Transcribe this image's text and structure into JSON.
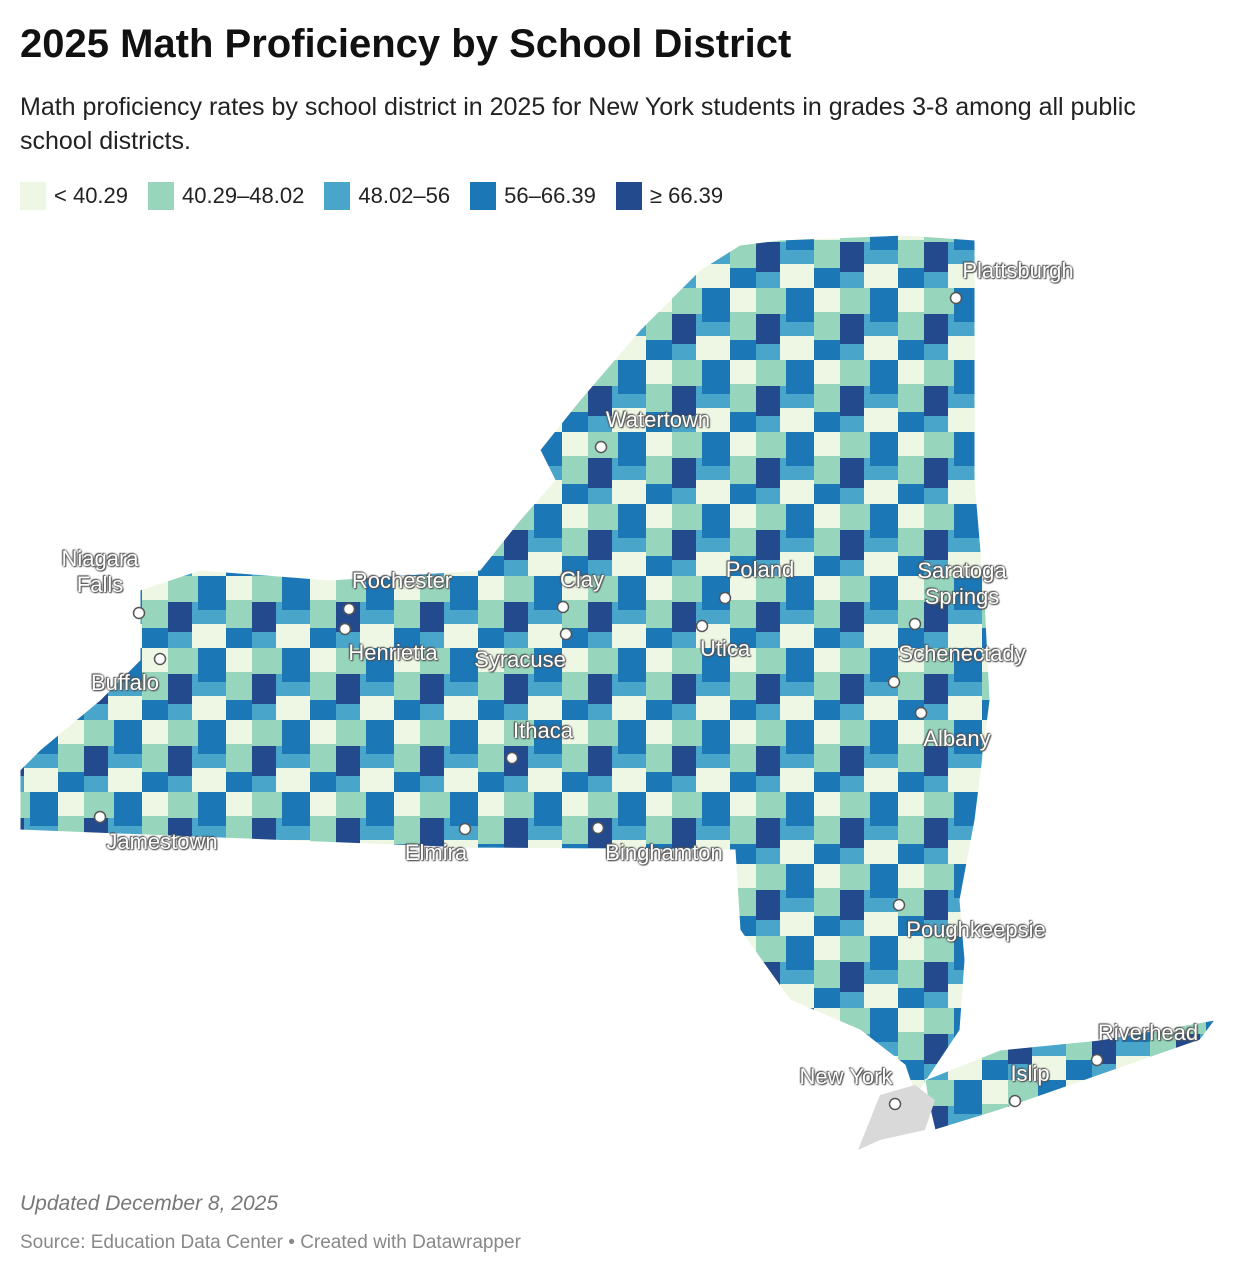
{
  "header": {
    "title": "2025 Math Proficiency by School District",
    "subtitle": "Math proficiency rates by school district in 2025 for New York students in grades 3-8 among all public school districts."
  },
  "legend": [
    {
      "label": "< 40.29",
      "color": "#eef7e4"
    },
    {
      "label": "40.29–48.02",
      "color": "#98d5bd"
    },
    {
      "label": "48.02–56",
      "color": "#4aa5cb"
    },
    {
      "label": "56–66.39",
      "color": "#1c77b7"
    },
    {
      "label": "≥ 66.39",
      "color": "#234a8c"
    }
  ],
  "map": {
    "cities": [
      "Plattsburgh",
      "Watertown",
      "Niagara Falls",
      "Rochester",
      "Henrietta",
      "Clay",
      "Syracuse",
      "Poland",
      "Utica",
      "Saratoga Springs",
      "Schenectady",
      "Albany",
      "Buffalo",
      "Ithaca",
      "Jamestown",
      "Elmira",
      "Binghamton",
      "Poughkeepsie",
      "New York",
      "Islip",
      "Riverhead"
    ]
  },
  "footer": {
    "updated": "Updated December 8, 2025",
    "source": "Source: Education Data Center • Created with Datawrapper"
  }
}
